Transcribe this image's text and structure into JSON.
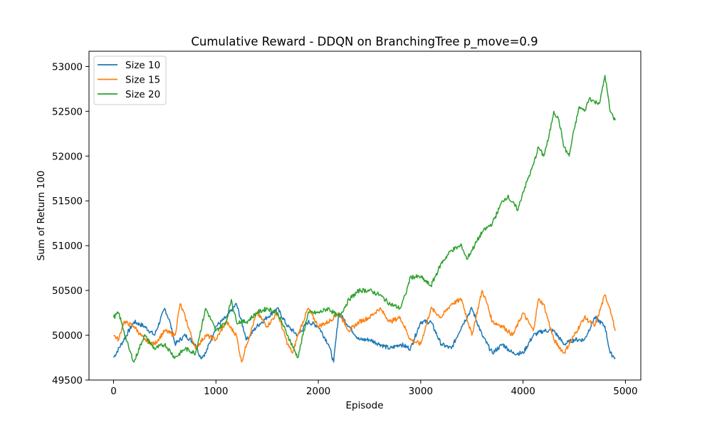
{
  "chart_data": {
    "type": "line",
    "title": "Cumulative Reward - DDQN on BranchingTree p_move=0.9",
    "xlabel": "Episode",
    "ylabel": "Sum of Return 100",
    "xlim": [
      -240,
      5150
    ],
    "ylim": [
      49500,
      53170
    ],
    "xticks": [
      0,
      1000,
      2000,
      3000,
      4000,
      5000
    ],
    "yticks": [
      49500,
      50000,
      50500,
      51000,
      51500,
      52000,
      52500,
      53000
    ],
    "grid": false,
    "legend_position": "top-left",
    "series": [
      {
        "name": "Size 10",
        "color": "#1f77b4",
        "x": [
          0,
          100,
          200,
          300,
          400,
          500,
          550,
          600,
          700,
          800,
          850,
          900,
          1000,
          1100,
          1200,
          1300,
          1400,
          1500,
          1600,
          1700,
          1800,
          1900,
          2000,
          2100,
          2150,
          2200,
          2300,
          2400,
          2500,
          2600,
          2700,
          2800,
          2900,
          3000,
          3100,
          3200,
          3300,
          3400,
          3500,
          3600,
          3700,
          3800,
          3900,
          4000,
          4100,
          4200,
          4300,
          4400,
          4500,
          4600,
          4700,
          4800,
          4850,
          4900
        ],
        "y": [
          49750,
          49950,
          50150,
          50100,
          50000,
          50300,
          50150,
          49900,
          50000,
          49900,
          49750,
          49800,
          50100,
          50200,
          50350,
          49950,
          50100,
          50200,
          50300,
          50100,
          50000,
          50150,
          50100,
          49900,
          49700,
          50250,
          50100,
          49950,
          49950,
          49900,
          49850,
          49900,
          49850,
          50150,
          50150,
          49900,
          49850,
          50100,
          50300,
          50000,
          49800,
          49900,
          49800,
          49800,
          50000,
          50050,
          50050,
          49900,
          49950,
          49950,
          50200,
          50100,
          49800,
          49750
        ]
      },
      {
        "name": "Size 15",
        "color": "#ff7f0e",
        "x": [
          0,
          50,
          100,
          200,
          300,
          400,
          500,
          600,
          650,
          700,
          800,
          900,
          1000,
          1100,
          1200,
          1250,
          1300,
          1400,
          1500,
          1600,
          1700,
          1750,
          1800,
          1900,
          2000,
          2100,
          2200,
          2300,
          2400,
          2500,
          2600,
          2700,
          2800,
          2900,
          3000,
          3100,
          3200,
          3300,
          3400,
          3500,
          3600,
          3650,
          3700,
          3800,
          3900,
          4000,
          4100,
          4150,
          4200,
          4300,
          4400,
          4500,
          4600,
          4700,
          4800,
          4850,
          4900
        ],
        "y": [
          50000,
          49950,
          50150,
          50100,
          49950,
          49900,
          50050,
          50000,
          50350,
          50200,
          49850,
          50000,
          49950,
          50150,
          50000,
          49700,
          49900,
          50250,
          50100,
          50250,
          49900,
          49800,
          50000,
          50300,
          50100,
          50150,
          50250,
          50050,
          50150,
          50200,
          50300,
          50150,
          50200,
          49950,
          49900,
          50300,
          50200,
          50350,
          50400,
          50000,
          50500,
          50350,
          50150,
          50100,
          50000,
          50250,
          50050,
          50400,
          50350,
          49950,
          49800,
          50000,
          50200,
          50100,
          50450,
          50300,
          50050
        ]
      },
      {
        "name": "Size 20",
        "color": "#2ca02c",
        "x": [
          0,
          50,
          100,
          150,
          200,
          300,
          400,
          500,
          600,
          700,
          800,
          900,
          1000,
          1100,
          1150,
          1200,
          1300,
          1400,
          1500,
          1600,
          1700,
          1800,
          1900,
          2000,
          2100,
          2200,
          2300,
          2400,
          2500,
          2600,
          2700,
          2800,
          2850,
          2900,
          3000,
          3100,
          3200,
          3300,
          3400,
          3450,
          3500,
          3600,
          3700,
          3800,
          3850,
          3950,
          4000,
          4100,
          4150,
          4200,
          4250,
          4300,
          4350,
          4400,
          4450,
          4500,
          4550,
          4600,
          4650,
          4700,
          4750,
          4800,
          4850,
          4900
        ],
        "y": [
          50200,
          50250,
          50050,
          49850,
          49700,
          50000,
          49850,
          49900,
          49750,
          49850,
          49800,
          50300,
          50050,
          50150,
          50400,
          50150,
          50150,
          50250,
          50300,
          50250,
          50000,
          49750,
          50250,
          50250,
          50300,
          50200,
          50400,
          50500,
          50500,
          50450,
          50350,
          50300,
          50450,
          50650,
          50650,
          50550,
          50800,
          50950,
          51000,
          50850,
          50950,
          51150,
          51250,
          51500,
          51550,
          51400,
          51600,
          51900,
          52100,
          52000,
          52200,
          52500,
          52400,
          52100,
          52000,
          52300,
          52550,
          52500,
          52650,
          52600,
          52600,
          52900,
          52500,
          52400
        ]
      }
    ]
  }
}
